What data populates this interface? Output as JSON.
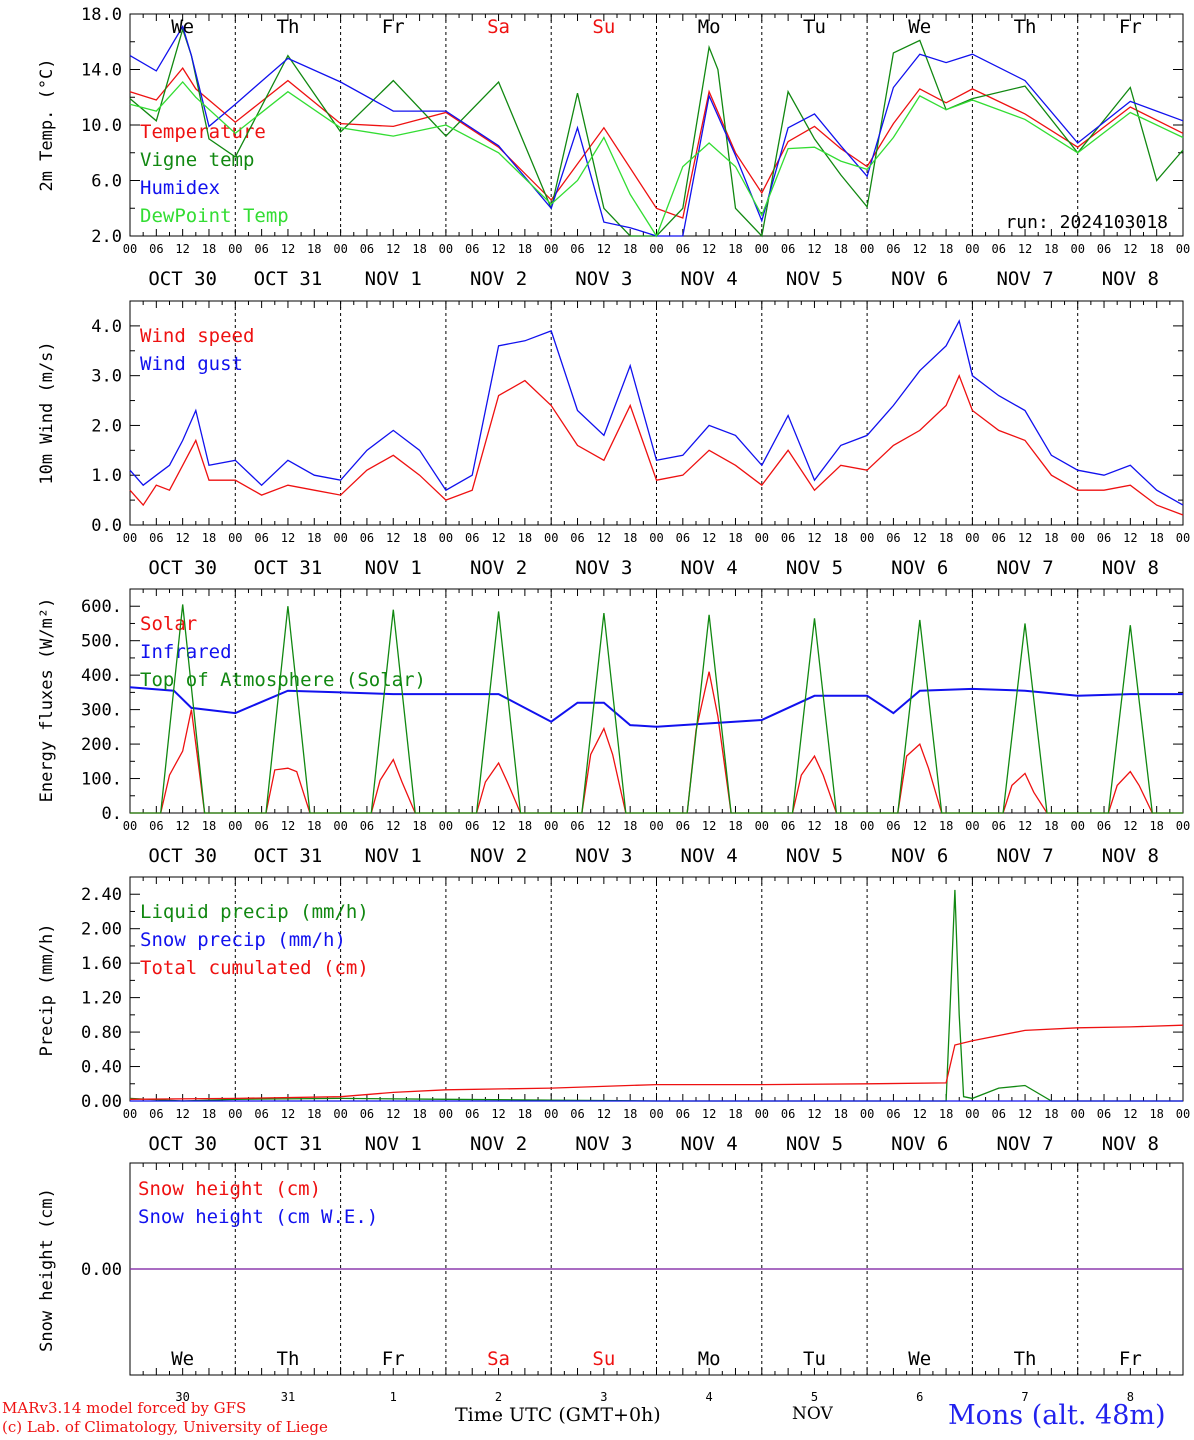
{
  "colors": {
    "red": "#ee1111",
    "green": "#118811",
    "blue": "#1111ee",
    "lightgreen": "#33dd33",
    "purple": "#8833aa",
    "axis": "#000000"
  },
  "days": {
    "weekday_top": [
      "We",
      "Th",
      "Fr",
      "Sa",
      "Su",
      "Mo",
      "Tu",
      "We",
      "Th",
      "Fr"
    ],
    "weekday_bottom": [
      "We",
      "Th",
      "Fr",
      "Sa",
      "Su",
      "Mo",
      "Tu",
      "We",
      "Th",
      "Fr"
    ],
    "weekend_index": [
      3,
      4
    ],
    "date_labels": [
      "OCT 30",
      "OCT 31",
      "NOV  1",
      "NOV  2",
      "NOV  3",
      "NOV  4",
      "NOV  5",
      "NOV  6",
      "NOV  7",
      "NOV  8"
    ],
    "hour_ticks": [
      "00",
      "06",
      "12",
      "18"
    ],
    "hour_end": "00",
    "bottom_numbers": [
      "30",
      "31",
      "1",
      "2",
      "3",
      "4",
      "5",
      "6",
      "7",
      "8"
    ]
  },
  "chart_data": [
    {
      "type": "line",
      "ylabel": "2m Temp. (°C)",
      "ylim": [
        2,
        18
      ],
      "yticks": [
        "2.0",
        "6.0",
        "10.0",
        "14.0",
        "18.0"
      ],
      "ytick_values": [
        2,
        6,
        10,
        14,
        18
      ],
      "annotation": "run: 2024103018",
      "series": [
        {
          "name": "Temperature",
          "color": "red",
          "x": [
            0,
            6,
            12,
            15,
            24,
            36,
            48,
            60,
            72,
            84,
            96,
            108,
            120,
            126,
            132,
            138,
            144,
            150,
            156,
            162,
            168,
            174,
            180,
            186,
            192,
            204,
            216,
            228,
            240
          ],
          "values": [
            12.4,
            11.8,
            14.1,
            12.6,
            10.2,
            13.2,
            10.1,
            9.9,
            10.9,
            8.4,
            4.6,
            9.8,
            4.0,
            3.3,
            12.4,
            8.0,
            5.1,
            8.8,
            9.9,
            8.3,
            7.0,
            10.1,
            12.6,
            11.6,
            12.6,
            10.8,
            8.4,
            11.3,
            9.4
          ]
        },
        {
          "name": "Vigne temp",
          "color": "green",
          "x": [
            0,
            6,
            12,
            14,
            18,
            24,
            36,
            48,
            60,
            72,
            84,
            96,
            102,
            108,
            114,
            120,
            126,
            132,
            134,
            138,
            144,
            150,
            156,
            162,
            168,
            174,
            180,
            186,
            192,
            204,
            216,
            228,
            234,
            240
          ],
          "values": [
            11.9,
            10.3,
            16.9,
            15.0,
            9.0,
            7.7,
            15.0,
            9.5,
            13.2,
            9.2,
            13.1,
            4.0,
            12.3,
            4.0,
            2.0,
            2.0,
            4.0,
            15.6,
            14.0,
            4.0,
            2.0,
            12.4,
            9.0,
            6.4,
            4.1,
            15.2,
            16.1,
            11.1,
            11.9,
            12.8,
            8.0,
            12.7,
            6.0,
            8.2
          ]
        },
        {
          "name": "Humidex",
          "color": "blue",
          "x": [
            0,
            6,
            12,
            14,
            18,
            24,
            36,
            48,
            60,
            72,
            84,
            96,
            102,
            108,
            114,
            120,
            126,
            132,
            138,
            144,
            150,
            156,
            162,
            168,
            174,
            180,
            186,
            192,
            204,
            216,
            228,
            234,
            240
          ],
          "values": [
            15.0,
            13.9,
            17.1,
            15.0,
            9.9,
            11.5,
            14.8,
            13.1,
            11.0,
            11.0,
            8.5,
            4.0,
            9.8,
            3.0,
            2.6,
            2.0,
            2.0,
            12.1,
            7.8,
            3.1,
            9.8,
            10.8,
            8.5,
            6.3,
            12.7,
            15.1,
            14.5,
            15.1,
            13.2,
            8.7,
            11.7,
            11.0,
            10.3
          ]
        },
        {
          "name": "DewPoint Temp",
          "color": "lightgreen",
          "x": [
            0,
            6,
            12,
            15,
            24,
            36,
            48,
            60,
            72,
            84,
            96,
            102,
            108,
            114,
            120,
            126,
            132,
            138,
            144,
            150,
            156,
            162,
            168,
            174,
            180,
            186,
            192,
            204,
            216,
            228,
            240
          ],
          "values": [
            11.5,
            11.0,
            13.1,
            12.0,
            9.4,
            12.4,
            9.8,
            9.2,
            10.0,
            8.0,
            4.3,
            6.0,
            9.1,
            5.0,
            2.0,
            7.0,
            8.7,
            7.0,
            3.5,
            8.3,
            8.4,
            7.4,
            6.8,
            9.1,
            12.1,
            11.1,
            11.8,
            10.4,
            8.0,
            10.9,
            9.1
          ]
        }
      ]
    },
    {
      "type": "line",
      "ylabel": "10m Wind (m/s)",
      "ylim": [
        0,
        4.5
      ],
      "yticks": [
        "0.0",
        "1.0",
        "2.0",
        "3.0",
        "4.0"
      ],
      "ytick_values": [
        0,
        1,
        2,
        3,
        4
      ],
      "series": [
        {
          "name": "Wind speed",
          "color": "red",
          "x": [
            0,
            3,
            6,
            9,
            12,
            15,
            18,
            24,
            30,
            36,
            42,
            48,
            54,
            60,
            66,
            72,
            78,
            84,
            90,
            96,
            102,
            108,
            114,
            120,
            126,
            132,
            138,
            144,
            150,
            156,
            162,
            168,
            174,
            180,
            186,
            189,
            192,
            198,
            204,
            210,
            216,
            222,
            228,
            234,
            240
          ],
          "values": [
            0.7,
            0.4,
            0.8,
            0.7,
            1.2,
            1.7,
            0.9,
            0.9,
            0.6,
            0.8,
            0.7,
            0.6,
            1.1,
            1.4,
            1.0,
            0.5,
            0.7,
            2.6,
            2.9,
            2.4,
            1.6,
            1.3,
            2.4,
            0.9,
            1.0,
            1.5,
            1.2,
            0.8,
            1.5,
            0.7,
            1.2,
            1.1,
            1.6,
            1.9,
            2.4,
            3.0,
            2.3,
            1.9,
            1.7,
            1.0,
            0.7,
            0.7,
            0.8,
            0.4,
            0.2
          ]
        },
        {
          "name": "Wind gust",
          "color": "blue",
          "x": [
            0,
            3,
            6,
            9,
            12,
            15,
            18,
            24,
            30,
            36,
            42,
            48,
            54,
            60,
            66,
            72,
            78,
            84,
            90,
            96,
            102,
            108,
            114,
            120,
            126,
            132,
            138,
            144,
            150,
            156,
            162,
            168,
            174,
            180,
            186,
            189,
            192,
            198,
            204,
            210,
            216,
            222,
            228,
            234,
            240
          ],
          "values": [
            1.1,
            0.8,
            1.0,
            1.2,
            1.7,
            2.3,
            1.2,
            1.3,
            0.8,
            1.3,
            1.0,
            0.9,
            1.5,
            1.9,
            1.5,
            0.7,
            1.0,
            3.6,
            3.7,
            3.9,
            2.3,
            1.8,
            3.2,
            1.3,
            1.4,
            2.0,
            1.8,
            1.2,
            2.2,
            0.9,
            1.6,
            1.8,
            2.4,
            3.1,
            3.6,
            4.1,
            3.0,
            2.6,
            2.3,
            1.4,
            1.1,
            1.0,
            1.2,
            0.7,
            0.4
          ]
        }
      ]
    },
    {
      "type": "line",
      "ylabel": "Energy fluxes (W/m²)",
      "ylim": [
        0,
        650
      ],
      "yticks": [
        "0.",
        "100.",
        "200.",
        "300.",
        "400.",
        "500.",
        "600."
      ],
      "ytick_values": [
        0,
        100,
        200,
        300,
        400,
        500,
        600
      ],
      "series": [
        {
          "name": "Solar",
          "color": "red",
          "x": [
            0,
            7,
            9,
            12,
            14,
            17,
            24,
            31,
            33,
            36,
            38,
            41,
            48,
            55,
            57,
            60,
            62,
            65,
            72,
            79,
            81,
            84,
            86,
            89,
            96,
            103,
            105,
            108,
            110,
            113,
            120,
            127,
            129,
            132,
            134,
            137,
            144,
            151,
            153,
            156,
            158,
            161,
            168,
            175,
            177,
            180,
            182,
            185,
            192,
            199,
            201,
            204,
            206,
            209,
            216,
            223,
            225,
            228,
            230,
            233,
            240
          ],
          "values": [
            0,
            0,
            110,
            180,
            300,
            0,
            0,
            0,
            125,
            130,
            120,
            0,
            0,
            0,
            95,
            155,
            90,
            0,
            0,
            0,
            90,
            145,
            90,
            0,
            0,
            0,
            170,
            245,
            170,
            0,
            0,
            0,
            240,
            410,
            280,
            0,
            0,
            0,
            110,
            165,
            110,
            0,
            0,
            0,
            165,
            200,
            130,
            0,
            0,
            0,
            80,
            115,
            60,
            0,
            0,
            0,
            80,
            120,
            80,
            0,
            0
          ]
        },
        {
          "name": "Infrared",
          "color": "blue",
          "x": [
            0,
            10,
            14,
            24,
            36,
            48,
            60,
            72,
            84,
            96,
            102,
            108,
            114,
            120,
            132,
            144,
            156,
            168,
            174,
            180,
            192,
            204,
            216,
            228,
            240
          ],
          "values": [
            365,
            355,
            305,
            290,
            355,
            350,
            345,
            345,
            345,
            265,
            320,
            320,
            255,
            250,
            260,
            270,
            340,
            340,
            290,
            355,
            360,
            355,
            340,
            345,
            345
          ]
        },
        {
          "name": "Top of Atmosphere (Solar)",
          "color": "green",
          "x": [
            0,
            7,
            12,
            17,
            24,
            31,
            36,
            41,
            48,
            55,
            60,
            65,
            72,
            79,
            84,
            89,
            96,
            103,
            108,
            113,
            120,
            127,
            132,
            137,
            144,
            151,
            156,
            161,
            168,
            175,
            180,
            185,
            192,
            199,
            204,
            209,
            216,
            223,
            228,
            233,
            240
          ],
          "values": [
            0,
            0,
            605,
            0,
            0,
            0,
            600,
            0,
            0,
            0,
            590,
            0,
            0,
            0,
            585,
            0,
            0,
            0,
            580,
            0,
            0,
            0,
            575,
            0,
            0,
            0,
            565,
            0,
            0,
            0,
            560,
            0,
            0,
            0,
            550,
            0,
            0,
            0,
            545,
            0,
            0
          ]
        }
      ]
    },
    {
      "type": "line",
      "ylabel": "Precip (mm/h)",
      "ylim": [
        0,
        2.6
      ],
      "yticks": [
        "0.00",
        "0.40",
        "0.80",
        "1.20",
        "1.60",
        "2.00",
        "2.40"
      ],
      "ytick_values": [
        0,
        0.4,
        0.8,
        1.2,
        1.6,
        2.0,
        2.4
      ],
      "series": [
        {
          "name": "Liquid precip (mm/h)",
          "color": "green",
          "x": [
            0,
            12,
            24,
            48,
            72,
            96,
            120,
            144,
            170,
            186,
            187,
            188,
            189,
            190,
            192,
            198,
            204,
            210,
            240
          ],
          "values": [
            0.03,
            0,
            0.02,
            0.03,
            0.02,
            0.01,
            0,
            0,
            0,
            0,
            1.2,
            2.45,
            1.0,
            0.05,
            0.03,
            0.15,
            0.18,
            0,
            0
          ]
        },
        {
          "name": "Snow precip (mm/h)",
          "color": "blue",
          "x": [
            0,
            240
          ],
          "values": [
            0,
            0
          ]
        },
        {
          "name": "Total cumulated (cm)",
          "color": "red",
          "x": [
            0,
            24,
            48,
            60,
            72,
            96,
            120,
            144,
            168,
            186,
            188,
            192,
            204,
            216,
            228,
            240
          ],
          "values": [
            0.02,
            0.03,
            0.05,
            0.1,
            0.13,
            0.15,
            0.19,
            0.19,
            0.2,
            0.21,
            0.65,
            0.7,
            0.82,
            0.85,
            0.86,
            0.88
          ]
        }
      ]
    },
    {
      "type": "line",
      "ylabel": "Snow height (cm)",
      "ylim": [
        -1,
        1
      ],
      "yticks": [
        "0.00"
      ],
      "ytick_values": [
        0
      ],
      "series": [
        {
          "name": "Snow height (cm)",
          "color": "red",
          "x": [
            0,
            240
          ],
          "values": [
            0,
            0
          ]
        },
        {
          "name": "Snow height (cm W.E.)",
          "color": "blue",
          "x": [
            0,
            240
          ],
          "values": [
            0,
            0
          ]
        }
      ]
    }
  ],
  "footer": {
    "model_line1": "MARv3.14 model forced by GFS",
    "model_line2": "(c) Lab. of Climatology, University of Liege",
    "time_label": "Time UTC (GMT+0h)",
    "month_label": "NOV",
    "station": "Mons (alt. 48m)"
  }
}
